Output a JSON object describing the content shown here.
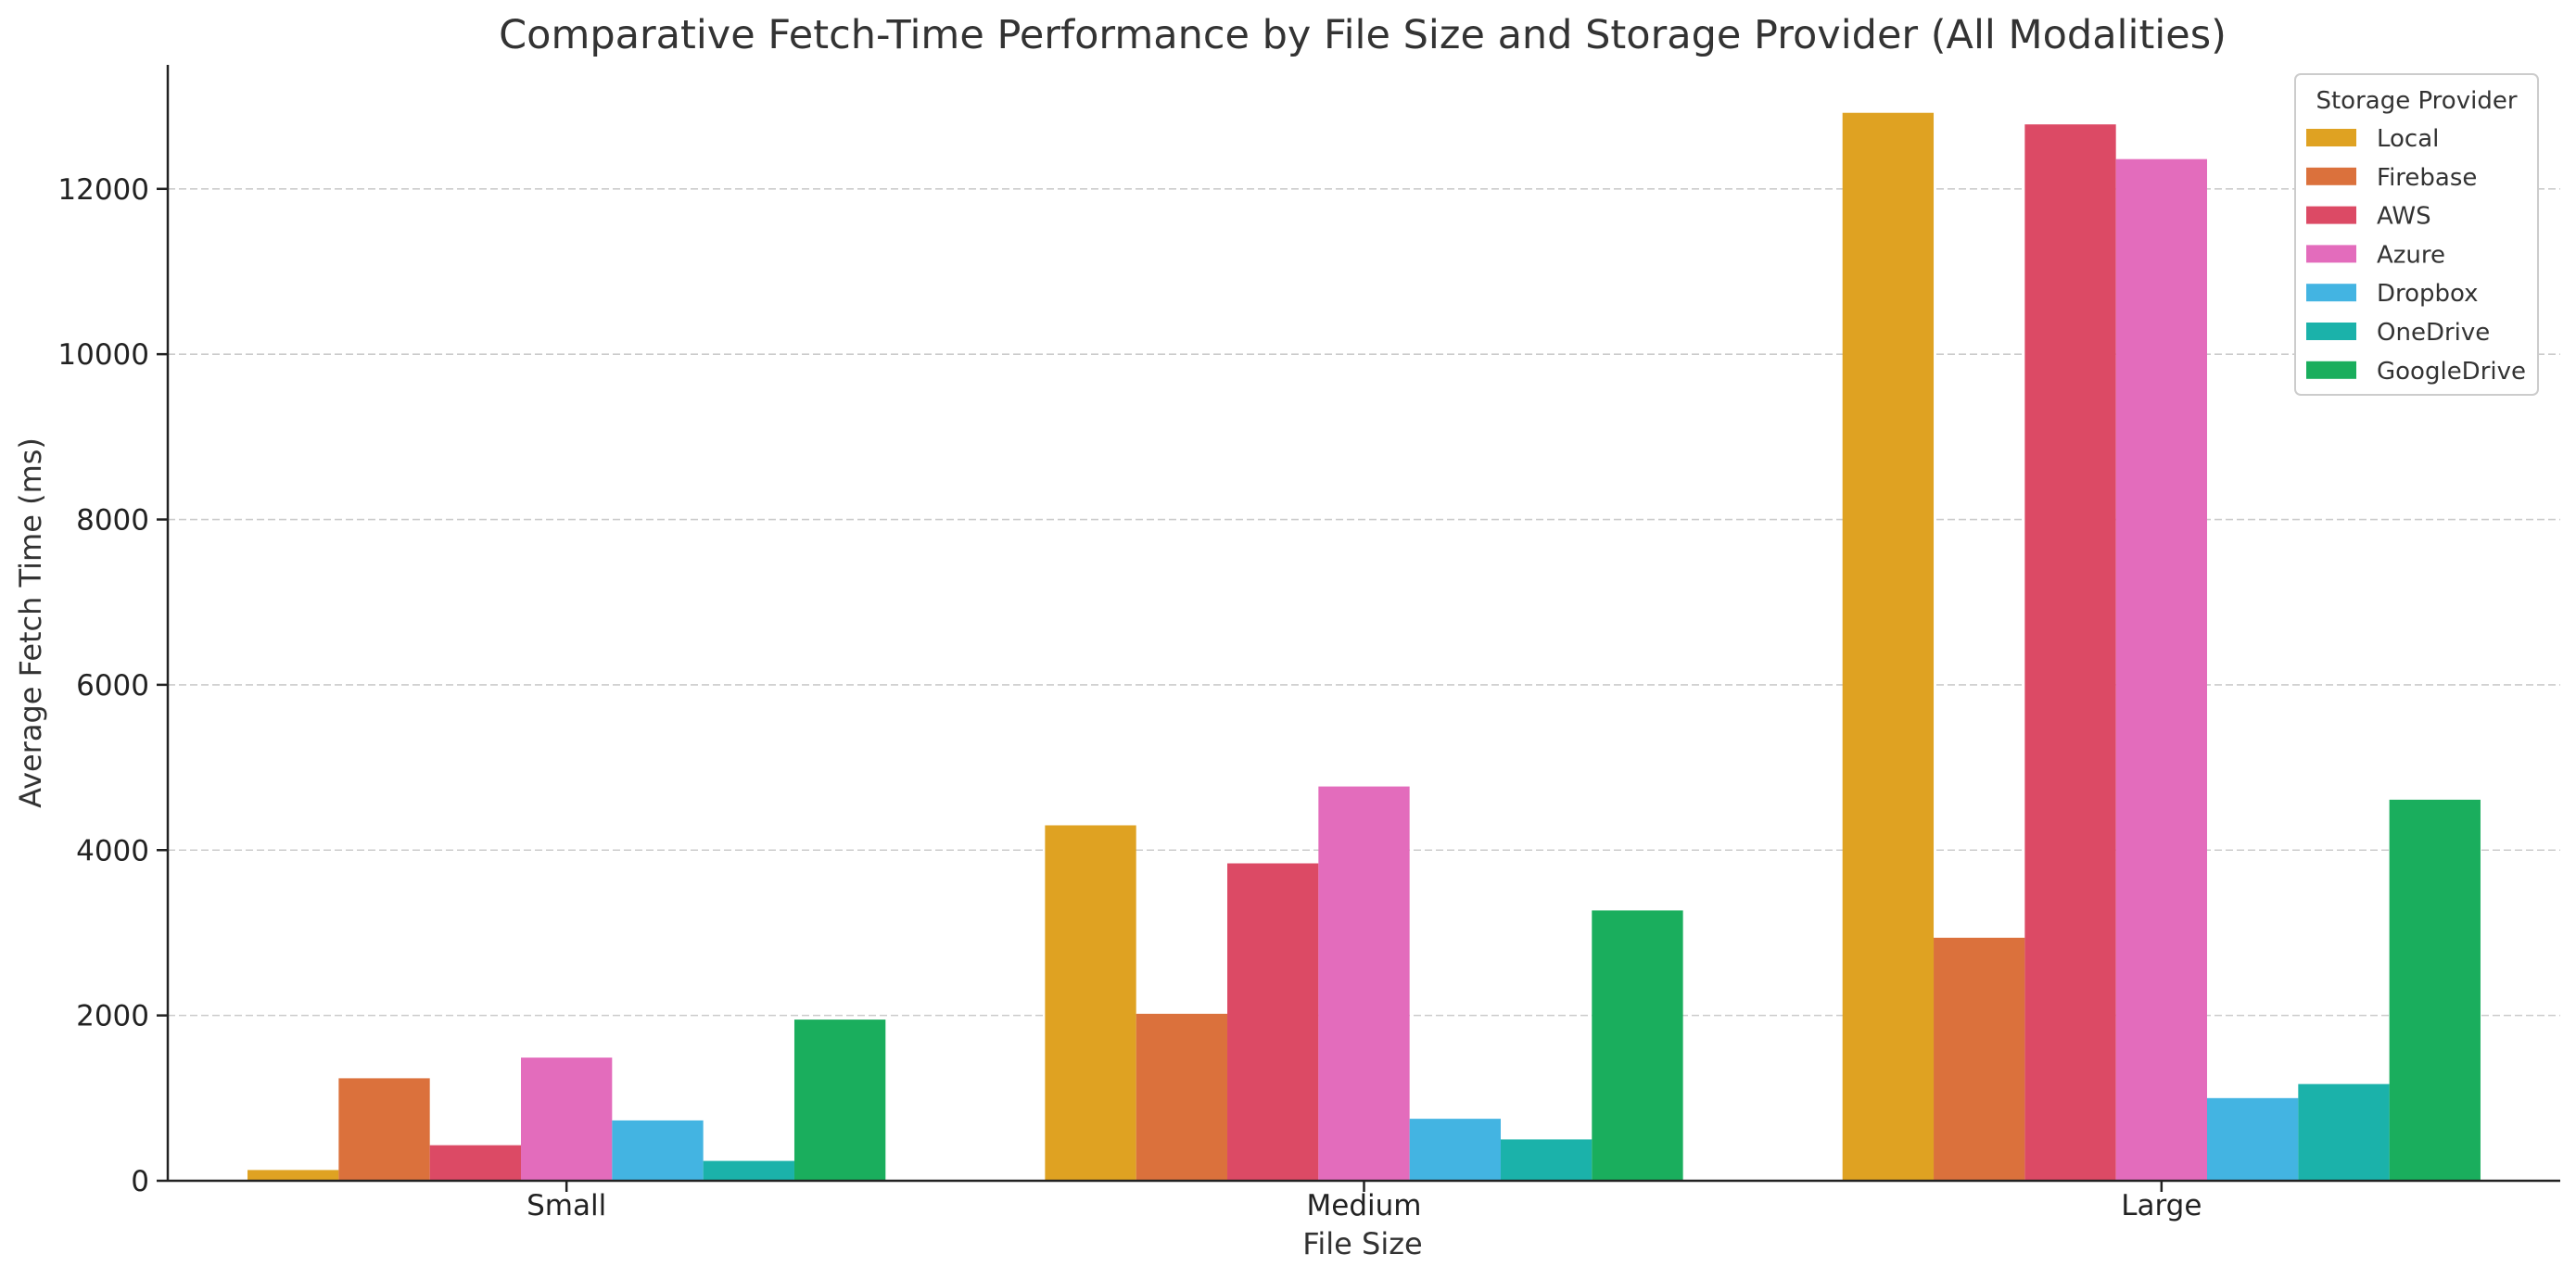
{
  "chart_data": {
    "type": "bar",
    "title": "Comparative Fetch-Time Performance by File Size and Storage Provider (All Modalities)",
    "xlabel": "File Size",
    "ylabel": "Average Fetch Time (ms)",
    "categories": [
      "Small",
      "Medium",
      "Large"
    ],
    "ylim": [
      0,
      13500
    ],
    "yticks": [
      0,
      2000,
      4000,
      6000,
      8000,
      10000,
      12000
    ],
    "grid": "horizontal dashed",
    "legend": {
      "title": "Storage Provider",
      "placement": "top-right"
    },
    "series": [
      {
        "name": "Local",
        "color": "#DFA222",
        "values": [
          130,
          4300,
          12920
        ]
      },
      {
        "name": "Firebase",
        "color": "#DB713C",
        "values": [
          1240,
          2020,
          2940
        ]
      },
      {
        "name": "AWS",
        "color": "#DC4A65",
        "values": [
          430,
          3840,
          12780
        ]
      },
      {
        "name": "Azure",
        "color": "#E36CBC",
        "values": [
          1490,
          4770,
          12360
        ]
      },
      {
        "name": "Dropbox",
        "color": "#43B4E2",
        "values": [
          730,
          750,
          1000
        ]
      },
      {
        "name": "OneDrive",
        "color": "#1BB2AA",
        "values": [
          240,
          500,
          1170
        ]
      },
      {
        "name": "GoogleDrive",
        "color": "#1AAE5D",
        "values": [
          1950,
          3270,
          4610
        ]
      }
    ]
  }
}
